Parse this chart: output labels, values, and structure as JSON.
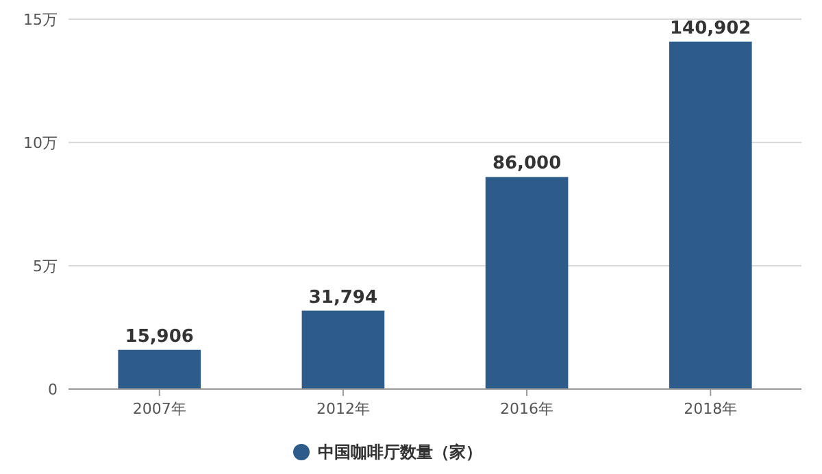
{
  "chart_data": {
    "type": "bar",
    "categories": [
      "2007年",
      "2012年",
      "2016年",
      "2018年"
    ],
    "series": [
      {
        "name": "中国咖啡厅数量（家）",
        "color": "#2d5b8a",
        "values": [
          1.5906,
          3.1794,
          8.6,
          14.0902
        ]
      }
    ],
    "value_labels": [
      "15,906",
      "31,794",
      "86,000",
      "140,902"
    ],
    "ylim": [
      0,
      15
    ],
    "yticks": [
      0,
      {
        "value": 5,
        "label": "5万"
      },
      {
        "value": 10,
        "label": "10万"
      },
      {
        "value": 15,
        "label": "15万"
      }
    ],
    "grid": "y",
    "legend": "bottom",
    "marker": "circle"
  }
}
